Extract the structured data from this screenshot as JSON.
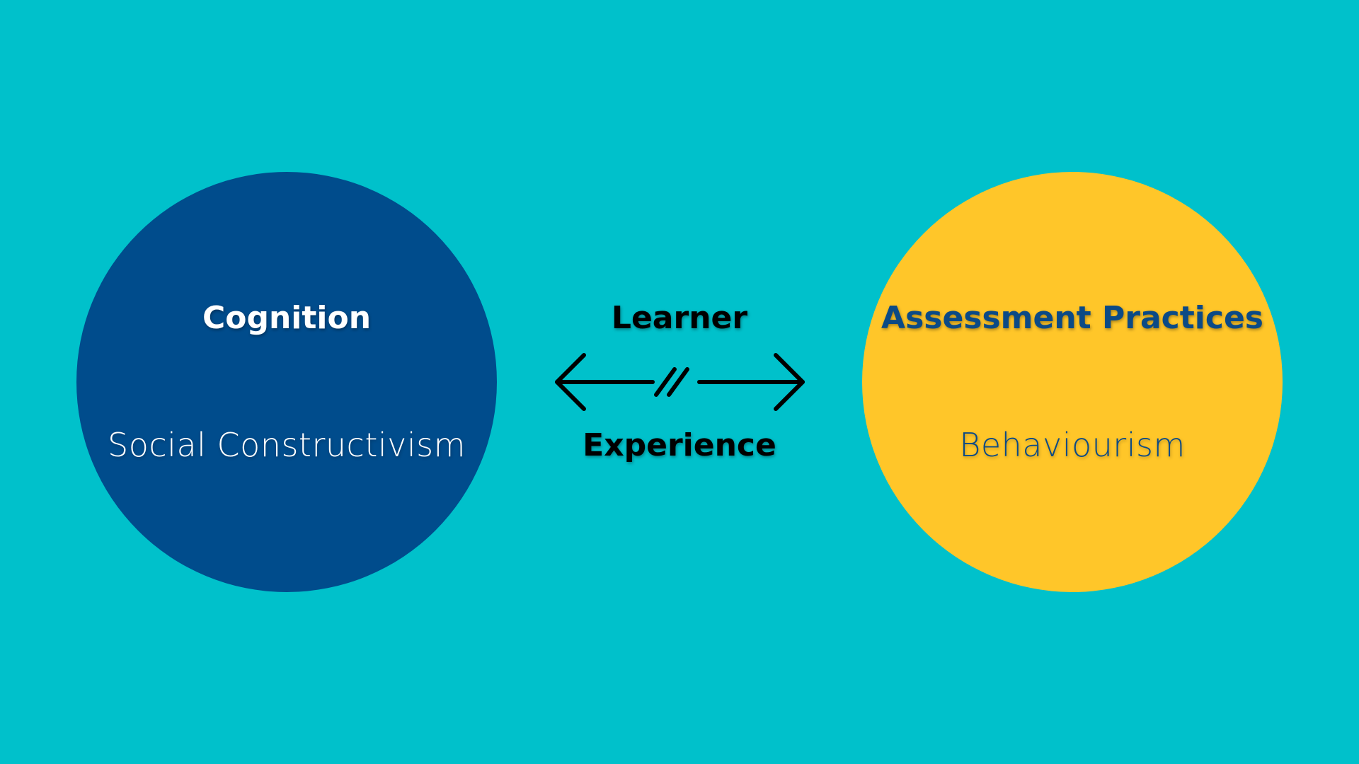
{
  "colors": {
    "background": "#00C1CB",
    "left_circle": "#004C8C",
    "right_circle": "#FFC629",
    "left_text": "#FFFFFF",
    "right_text": "#0B4A86",
    "center_text": "#000000",
    "arrow": "#000000"
  },
  "left_node": {
    "title": "Cognition",
    "subtitle": "Social Constructivism"
  },
  "right_node": {
    "title": "Assessment Practices",
    "subtitle": "Behaviourism"
  },
  "connector": {
    "top_label": "Learner",
    "bottom_label": "Experience",
    "icon": "double-headed-arrow-with-break-icon"
  }
}
